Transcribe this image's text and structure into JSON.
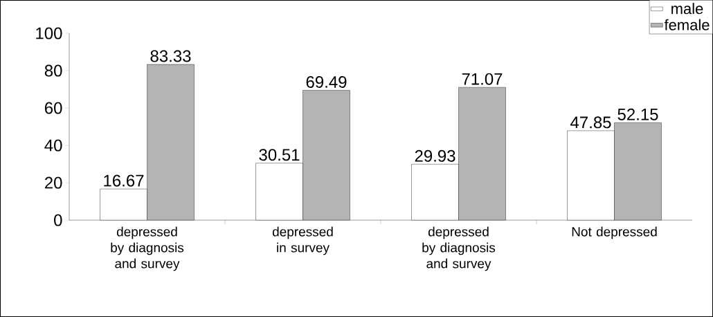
{
  "chart_data": {
    "type": "bar",
    "categories": [
      "depressed by diagnosis and survey",
      "depressed in survey",
      "depressed by diagnosis and survey",
      "Not depressed"
    ],
    "series": [
      {
        "name": "male",
        "color": "#ffffff",
        "values": [
          16.67,
          30.51,
          29.93,
          47.85
        ]
      },
      {
        "name": "female",
        "color": "#b4b4b4",
        "values": [
          83.33,
          69.49,
          71.07,
          52.15
        ]
      }
    ],
    "ylim": [
      0,
      100
    ],
    "yticks": [
      0,
      20,
      40,
      60,
      80,
      100
    ],
    "data_labels": true,
    "legend": "top right",
    "grid": false
  }
}
